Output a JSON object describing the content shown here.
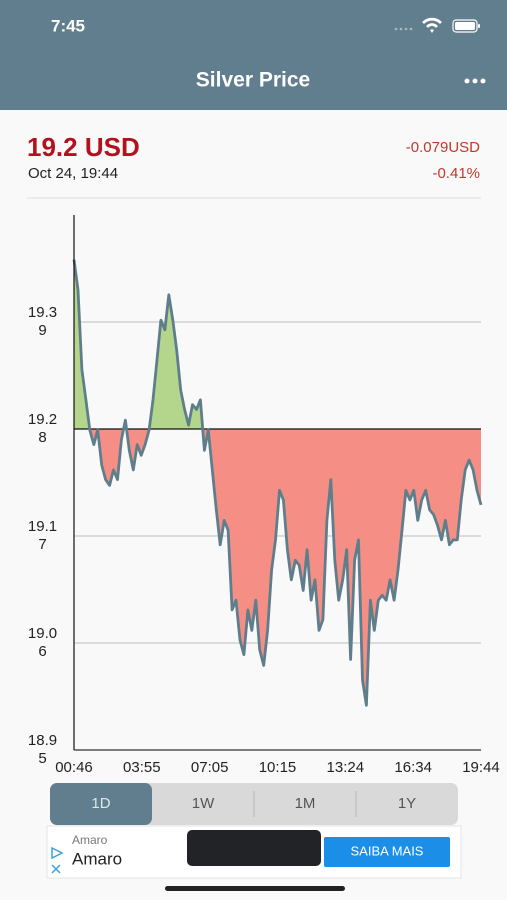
{
  "status_bar": {
    "time": "7:45"
  },
  "header": {
    "title": "Silver Price"
  },
  "quote": {
    "price": "19.2 USD",
    "timestamp": "Oct 24, 19:44",
    "change": "-0.079USD",
    "change_percent": "-0.41%"
  },
  "chart_data": {
    "type": "area",
    "values": [
      19.454,
      19.423,
      19.341,
      19.31,
      19.279,
      19.264,
      19.279,
      19.243,
      19.228,
      19.222,
      19.238,
      19.228,
      19.269,
      19.289,
      19.258,
      19.238,
      19.264,
      19.253,
      19.264,
      19.279,
      19.31,
      19.351,
      19.392,
      19.382,
      19.418,
      19.392,
      19.361,
      19.32,
      19.3,
      19.284,
      19.305,
      19.3,
      19.31,
      19.258,
      19.279,
      19.238,
      19.197,
      19.161,
      19.186,
      19.176,
      19.094,
      19.104,
      19.063,
      19.048,
      19.094,
      19.073,
      19.104,
      19.053,
      19.037,
      19.073,
      19.135,
      19.166,
      19.217,
      19.207,
      19.156,
      19.125,
      19.145,
      19.14,
      19.114,
      19.156,
      19.104,
      19.125,
      19.073,
      19.084,
      19.186,
      19.228,
      19.145,
      19.104,
      19.125,
      19.156,
      19.043,
      19.145,
      19.166,
      19.022,
      18.996,
      19.104,
      19.073,
      19.104,
      19.109,
      19.104,
      19.125,
      19.104,
      19.135,
      19.176,
      19.217,
      19.207,
      19.217,
      19.186,
      19.207,
      19.217,
      19.197,
      19.192,
      19.181,
      19.166,
      19.186,
      19.161,
      19.166,
      19.166,
      19.207,
      19.238,
      19.248,
      19.238,
      19.217,
      19.202
    ],
    "xticks": [
      "00:46",
      "03:55",
      "07:05",
      "10:15",
      "13:24",
      "16:34",
      "19:44"
    ],
    "ylim": [
      18.95,
      19.5
    ],
    "yticks": [
      19.39,
      19.28,
      19.17,
      19.06,
      18.95
    ],
    "baseline": 19.28,
    "grid": true,
    "line_color": "#5f7e8c",
    "up_color": "#b4d68c",
    "down_color": "#f58f86"
  },
  "range_tabs": {
    "options": [
      "1D",
      "1W",
      "1M",
      "1Y"
    ],
    "selected": 0
  },
  "ad": {
    "advertiser": "Amaro",
    "title": "Amaro",
    "cta": "SAIBA MAIS"
  }
}
